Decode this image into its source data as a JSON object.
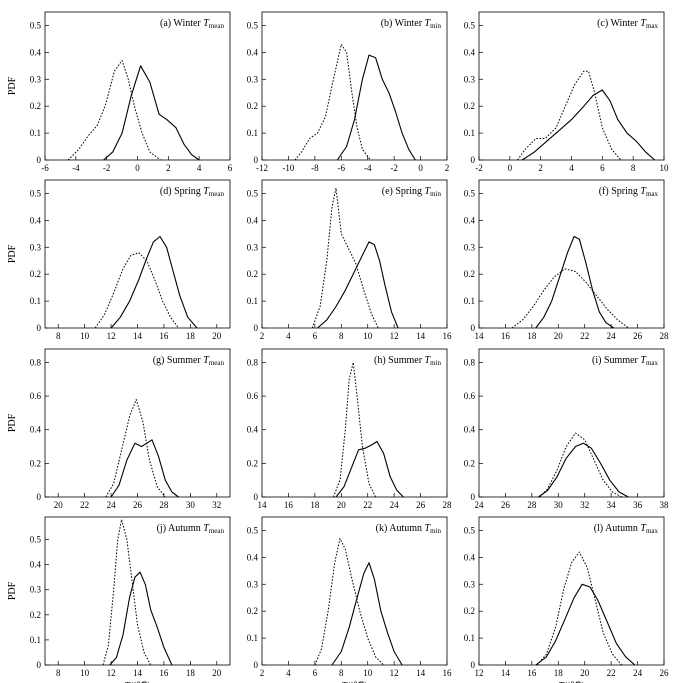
{
  "figure": {
    "ylabel": "PDF",
    "xlabel_main": "T",
    "xlabel_unit": "/(℃)"
  },
  "chart_data": [
    {
      "type": "line",
      "title": "(a) Winter",
      "var": "T",
      "sub": "mean",
      "xlim": [
        -6,
        6
      ],
      "xticks": [
        -6,
        -4,
        -2,
        0,
        2,
        4,
        6
      ],
      "ylim": [
        0,
        0.55
      ],
      "yticks": [
        0,
        0.1,
        0.2,
        0.3,
        0.4,
        0.5
      ],
      "series": [
        {
          "style": "dotted",
          "x": [
            -4.5,
            -3.8,
            -3.2,
            -2.6,
            -2.1,
            -1.5,
            -1,
            -0.6,
            -0.2,
            0.3,
            0.8,
            1.5
          ],
          "y": [
            0,
            0.04,
            0.09,
            0.13,
            0.2,
            0.33,
            0.37,
            0.3,
            0.2,
            0.1,
            0.03,
            0
          ]
        },
        {
          "style": "solid",
          "x": [
            -2.2,
            -1.6,
            -1,
            -0.4,
            0.2,
            0.8,
            1.4,
            1.9,
            2.5,
            3,
            3.5,
            4
          ],
          "y": [
            0,
            0.03,
            0.1,
            0.24,
            0.35,
            0.29,
            0.17,
            0.15,
            0.12,
            0.06,
            0.02,
            0
          ]
        }
      ]
    },
    {
      "type": "line",
      "title": "(b) Winter",
      "var": "T",
      "sub": "min",
      "xlim": [
        -12,
        2
      ],
      "xticks": [
        -12,
        -10,
        -8,
        -6,
        -4,
        -2,
        0,
        2
      ],
      "ylim": [
        0,
        0.55
      ],
      "yticks": [
        0,
        0.1,
        0.2,
        0.3,
        0.4,
        0.5
      ],
      "series": [
        {
          "style": "dotted",
          "x": [
            -9.5,
            -9,
            -8.4,
            -7.8,
            -7.2,
            -6.6,
            -6,
            -5.6,
            -5.2,
            -4.8,
            -4.4,
            -3.8
          ],
          "y": [
            0,
            0.03,
            0.08,
            0.1,
            0.16,
            0.3,
            0.43,
            0.4,
            0.25,
            0.12,
            0.04,
            0
          ]
        },
        {
          "style": "solid",
          "x": [
            -6.3,
            -5.6,
            -5,
            -4.4,
            -3.9,
            -3.4,
            -2.9,
            -2.4,
            -1.9,
            -1.4,
            -0.9,
            -0.4
          ],
          "y": [
            0,
            0.05,
            0.15,
            0.3,
            0.39,
            0.38,
            0.3,
            0.25,
            0.18,
            0.1,
            0.04,
            0
          ]
        }
      ]
    },
    {
      "type": "line",
      "title": "(c) Winter",
      "var": "T",
      "sub": "max",
      "xlim": [
        -2,
        10
      ],
      "xticks": [
        -2,
        0,
        2,
        4,
        6,
        8,
        10
      ],
      "ylim": [
        0,
        0.55
      ],
      "yticks": [
        0,
        0.1,
        0.2,
        0.3,
        0.4,
        0.5
      ],
      "series": [
        {
          "style": "dotted",
          "x": [
            0.5,
            1,
            1.7,
            2.3,
            3,
            3.6,
            4.2,
            4.8,
            5.1,
            5.5,
            6,
            6.6,
            7.2
          ],
          "y": [
            0,
            0.04,
            0.08,
            0.08,
            0.12,
            0.2,
            0.28,
            0.33,
            0.33,
            0.25,
            0.12,
            0.04,
            0
          ]
        },
        {
          "style": "solid",
          "x": [
            0.8,
            1.6,
            2.4,
            3.2,
            4,
            4.8,
            5.4,
            6,
            6.5,
            7,
            7.6,
            8.2,
            8.8,
            9.4
          ],
          "y": [
            0,
            0.03,
            0.07,
            0.11,
            0.15,
            0.2,
            0.24,
            0.26,
            0.22,
            0.15,
            0.1,
            0.07,
            0.03,
            0
          ]
        }
      ]
    },
    {
      "type": "line",
      "title": "(d) Spring",
      "var": "T",
      "sub": "mean",
      "xlim": [
        7,
        21
      ],
      "xticks": [
        8,
        10,
        12,
        14,
        16,
        18,
        20
      ],
      "ylim": [
        0,
        0.55
      ],
      "yticks": [
        0,
        0.1,
        0.2,
        0.3,
        0.4,
        0.5
      ],
      "series": [
        {
          "style": "dotted",
          "x": [
            10.8,
            11.5,
            12.2,
            12.9,
            13.5,
            14.1,
            14.7,
            15.3,
            15.9,
            16.5,
            17.1
          ],
          "y": [
            0,
            0.05,
            0.13,
            0.22,
            0.27,
            0.28,
            0.25,
            0.18,
            0.1,
            0.04,
            0
          ]
        },
        {
          "style": "solid",
          "x": [
            12,
            12.7,
            13.4,
            14.1,
            14.7,
            15.2,
            15.7,
            16.2,
            16.7,
            17.2,
            17.8,
            18.5
          ],
          "y": [
            0,
            0.04,
            0.1,
            0.18,
            0.26,
            0.32,
            0.34,
            0.3,
            0.21,
            0.12,
            0.04,
            0
          ]
        }
      ]
    },
    {
      "type": "line",
      "title": "(e) Spring",
      "var": "T",
      "sub": "min",
      "xlim": [
        2,
        16
      ],
      "xticks": [
        2,
        4,
        6,
        8,
        10,
        12,
        14,
        16
      ],
      "ylim": [
        0,
        0.55
      ],
      "yticks": [
        0,
        0.1,
        0.2,
        0.3,
        0.4,
        0.5
      ],
      "series": [
        {
          "style": "dotted",
          "x": [
            5.8,
            6.4,
            6.9,
            7.3,
            7.6,
            8,
            8.5,
            9.1,
            9.7,
            10.3,
            10.8
          ],
          "y": [
            0,
            0.08,
            0.25,
            0.45,
            0.52,
            0.35,
            0.3,
            0.24,
            0.14,
            0.05,
            0
          ]
        },
        {
          "style": "solid",
          "x": [
            6.2,
            6.9,
            7.6,
            8.3,
            9,
            9.6,
            10.1,
            10.5,
            10.9,
            11.3,
            11.8,
            12.3
          ],
          "y": [
            0,
            0.03,
            0.08,
            0.14,
            0.21,
            0.27,
            0.32,
            0.31,
            0.25,
            0.16,
            0.06,
            0
          ]
        }
      ]
    },
    {
      "type": "line",
      "title": "(f) Spring",
      "var": "T",
      "sub": "max",
      "xlim": [
        14,
        28
      ],
      "xticks": [
        14,
        16,
        18,
        20,
        22,
        24,
        26,
        28
      ],
      "ylim": [
        0,
        0.55
      ],
      "yticks": [
        0,
        0.1,
        0.2,
        0.3,
        0.4,
        0.5
      ],
      "series": [
        {
          "style": "dotted",
          "x": [
            16.5,
            17.3,
            18.1,
            18.9,
            19.7,
            20.5,
            21.3,
            22.1,
            22.9,
            23.7,
            24.5,
            25.3
          ],
          "y": [
            0,
            0.03,
            0.08,
            0.14,
            0.19,
            0.22,
            0.21,
            0.17,
            0.12,
            0.07,
            0.03,
            0
          ]
        },
        {
          "style": "solid",
          "x": [
            18.3,
            18.9,
            19.5,
            20.1,
            20.7,
            21.2,
            21.6,
            22.1,
            22.6,
            23.1,
            23.6,
            24.2
          ],
          "y": [
            0,
            0.04,
            0.1,
            0.19,
            0.28,
            0.34,
            0.33,
            0.24,
            0.14,
            0.06,
            0.02,
            0
          ]
        }
      ]
    },
    {
      "type": "line",
      "title": "(g) Summer",
      "var": "T",
      "sub": "mean",
      "xlim": [
        19,
        33
      ],
      "xticks": [
        20,
        22,
        24,
        26,
        28,
        30,
        32
      ],
      "ylim": [
        0,
        0.88
      ],
      "yticks": [
        0,
        0.2,
        0.4,
        0.6,
        0.8
      ],
      "series": [
        {
          "style": "dotted",
          "x": [
            23.6,
            24.2,
            24.8,
            25.4,
            25.9,
            26.4,
            26.9,
            27.5,
            28.1
          ],
          "y": [
            0,
            0.08,
            0.28,
            0.48,
            0.58,
            0.45,
            0.22,
            0.06,
            0
          ]
        },
        {
          "style": "solid",
          "x": [
            24,
            24.6,
            25.2,
            25.8,
            26.3,
            26.7,
            27.1,
            27.6,
            28.1,
            28.6,
            29.1
          ],
          "y": [
            0,
            0.07,
            0.22,
            0.32,
            0.3,
            0.32,
            0.34,
            0.24,
            0.1,
            0.03,
            0
          ]
        }
      ]
    },
    {
      "type": "line",
      "title": "(h) Summer",
      "var": "T",
      "sub": "min",
      "xlim": [
        14,
        28
      ],
      "xticks": [
        14,
        16,
        18,
        20,
        22,
        24,
        26,
        28
      ],
      "ylim": [
        0,
        0.88
      ],
      "yticks": [
        0,
        0.2,
        0.4,
        0.6,
        0.8
      ],
      "series": [
        {
          "style": "dotted",
          "x": [
            19.4,
            19.9,
            20.3,
            20.6,
            20.9,
            21.2,
            21.6,
            22.1,
            22.6
          ],
          "y": [
            0,
            0.1,
            0.4,
            0.7,
            0.8,
            0.6,
            0.3,
            0.08,
            0
          ]
        },
        {
          "style": "solid",
          "x": [
            19.6,
            20.2,
            20.8,
            21.3,
            21.8,
            22.3,
            22.7,
            23.2,
            23.7,
            24.2,
            24.7
          ],
          "y": [
            0,
            0.06,
            0.18,
            0.28,
            0.29,
            0.31,
            0.33,
            0.26,
            0.12,
            0.04,
            0
          ]
        }
      ]
    },
    {
      "type": "line",
      "title": "(i) Summer",
      "var": "T",
      "sub": "max",
      "xlim": [
        24,
        38
      ],
      "xticks": [
        24,
        26,
        28,
        30,
        32,
        34,
        36,
        38
      ],
      "ylim": [
        0,
        0.88
      ],
      "yticks": [
        0,
        0.2,
        0.4,
        0.6,
        0.8
      ],
      "series": [
        {
          "style": "dotted",
          "x": [
            28.6,
            29.2,
            29.9,
            30.6,
            31.3,
            32,
            32.7,
            33.4,
            34.1,
            34.8
          ],
          "y": [
            0,
            0.05,
            0.16,
            0.3,
            0.38,
            0.34,
            0.22,
            0.1,
            0.03,
            0
          ]
        },
        {
          "style": "solid",
          "x": [
            28.5,
            29.2,
            29.9,
            30.6,
            31.3,
            31.9,
            32.5,
            33.2,
            33.9,
            34.6,
            35.3
          ],
          "y": [
            0,
            0.04,
            0.12,
            0.23,
            0.3,
            0.32,
            0.29,
            0.2,
            0.1,
            0.03,
            0
          ]
        }
      ]
    },
    {
      "type": "line",
      "title": "(j) Autumn",
      "var": "T",
      "sub": "mean",
      "xlim": [
        7,
        21
      ],
      "xticks": [
        8,
        10,
        12,
        14,
        16,
        18,
        20
      ],
      "ylim": [
        0,
        0.59
      ],
      "yticks": [
        0,
        0.1,
        0.2,
        0.3,
        0.4,
        0.5
      ],
      "series": [
        {
          "style": "dotted",
          "x": [
            11.4,
            11.8,
            12.2,
            12.5,
            12.8,
            13.2,
            13.6,
            14,
            14.5,
            15
          ],
          "y": [
            0,
            0.08,
            0.3,
            0.5,
            0.58,
            0.5,
            0.33,
            0.16,
            0.05,
            0
          ]
        },
        {
          "style": "solid",
          "x": [
            11.9,
            12.4,
            12.9,
            13.4,
            13.8,
            14.2,
            14.6,
            15,
            15.5,
            16,
            16.6
          ],
          "y": [
            0,
            0.03,
            0.12,
            0.27,
            0.35,
            0.37,
            0.32,
            0.22,
            0.15,
            0.07,
            0
          ]
        }
      ]
    },
    {
      "type": "line",
      "title": "(k) Autumn",
      "var": "T",
      "sub": "min",
      "xlim": [
        2,
        16
      ],
      "xticks": [
        2,
        4,
        6,
        8,
        10,
        12,
        14,
        16
      ],
      "ylim": [
        0,
        0.55
      ],
      "yticks": [
        0,
        0.1,
        0.2,
        0.3,
        0.4,
        0.5
      ],
      "series": [
        {
          "style": "dotted",
          "x": [
            6,
            6.5,
            7,
            7.5,
            7.9,
            8.3,
            8.8,
            9.4,
            10,
            10.6,
            11.2
          ],
          "y": [
            0,
            0.06,
            0.2,
            0.38,
            0.47,
            0.43,
            0.32,
            0.2,
            0.1,
            0.03,
            0
          ]
        },
        {
          "style": "solid",
          "x": [
            7.3,
            8,
            8.6,
            9.2,
            9.7,
            10.1,
            10.5,
            11,
            11.5,
            12,
            12.6
          ],
          "y": [
            0,
            0.05,
            0.14,
            0.25,
            0.34,
            0.38,
            0.32,
            0.2,
            0.12,
            0.05,
            0
          ]
        }
      ]
    },
    {
      "type": "line",
      "title": "(l) Autumn",
      "var": "T",
      "sub": "max",
      "xlim": [
        12,
        26
      ],
      "xticks": [
        12,
        14,
        16,
        18,
        20,
        22,
        24,
        26
      ],
      "ylim": [
        0,
        0.55
      ],
      "yticks": [
        0,
        0.1,
        0.2,
        0.3,
        0.4,
        0.5
      ],
      "series": [
        {
          "style": "dotted",
          "x": [
            16.4,
            17.1,
            17.8,
            18.4,
            19,
            19.6,
            20.2,
            20.8,
            21.4,
            22.1,
            22.8
          ],
          "y": [
            0,
            0.04,
            0.14,
            0.28,
            0.38,
            0.42,
            0.36,
            0.24,
            0.12,
            0.04,
            0
          ]
        },
        {
          "style": "solid",
          "x": [
            16.3,
            17.1,
            17.8,
            18.5,
            19.2,
            19.8,
            20.4,
            21,
            21.7,
            22.4,
            23.1,
            23.8
          ],
          "y": [
            0,
            0.03,
            0.09,
            0.17,
            0.25,
            0.3,
            0.29,
            0.24,
            0.16,
            0.08,
            0.03,
            0
          ]
        }
      ]
    }
  ]
}
